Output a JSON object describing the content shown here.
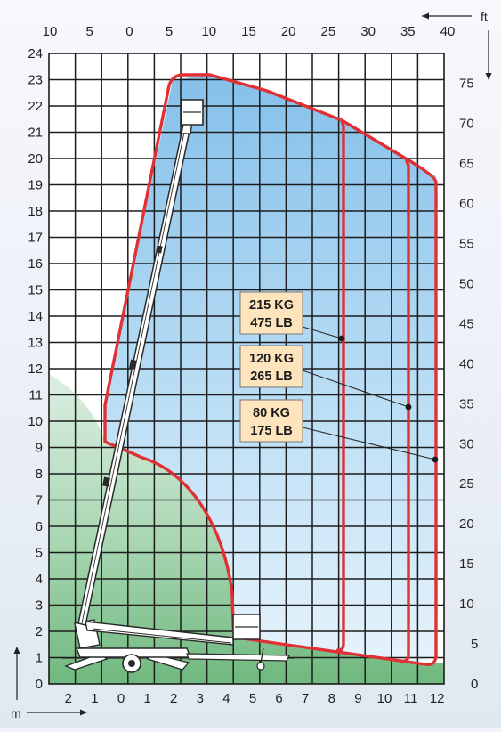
{
  "diagram": {
    "units": {
      "meters": "m",
      "feet": "ft"
    },
    "top_ft_ticks": [
      "10",
      "5",
      "0",
      "5",
      "10",
      "15",
      "20",
      "25",
      "30",
      "35",
      "40"
    ],
    "left_m_ticks": [
      "0",
      "1",
      "2",
      "3",
      "4",
      "5",
      "6",
      "7",
      "8",
      "9",
      "10",
      "11",
      "12",
      "13",
      "14",
      "15",
      "16",
      "17",
      "18",
      "19",
      "20",
      "21",
      "22",
      "23",
      "24"
    ],
    "right_ft_ticks": [
      "0",
      "5",
      "10",
      "15",
      "20",
      "25",
      "30",
      "35",
      "40",
      "45",
      "50",
      "55",
      "60",
      "65",
      "70",
      "75"
    ],
    "bottom_m_ticks": [
      "2",
      "1",
      "0",
      "1",
      "2",
      "3",
      "4",
      "5",
      "6",
      "7",
      "8",
      "9",
      "10",
      "11",
      "12"
    ],
    "load_zones": [
      {
        "load_kg": "215 KG",
        "load_lb": "475 LB",
        "color": "#e03034"
      },
      {
        "load_kg": "120 KG",
        "load_lb": "265 LB",
        "color": "#e03034"
      },
      {
        "load_kg": "80 KG",
        "load_lb": "175 LB",
        "color": "#e03034"
      }
    ],
    "colors": {
      "envelope": "#e03034",
      "grid": "#1c1c1c",
      "reach_fill": "#8fc7ee",
      "ground_fill": "#78bd87",
      "label_box": "#fde4bd"
    }
  }
}
